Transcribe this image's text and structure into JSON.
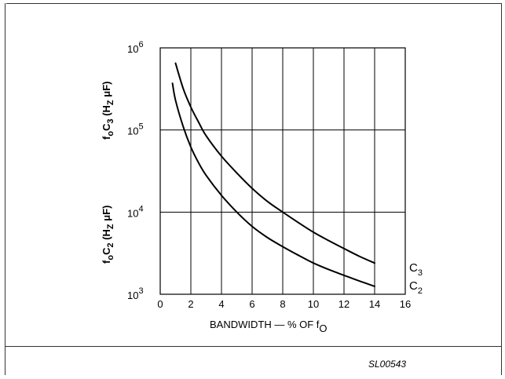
{
  "figure_id": "SL00543",
  "chart_data": {
    "type": "line",
    "scale": {
      "y": "log"
    },
    "xlabel": {
      "main": "BANDWIDTH — % OF f",
      "sub": "O"
    },
    "ylabel_upper": {
      "base1": "f",
      "sub1": "o",
      "base2": "C",
      "sub2": "3",
      "unit_open": " (H",
      "unit_sub": "Z",
      "unit_rest": " μF)"
    },
    "ylabel_lower": {
      "base1": "f",
      "sub1": "o",
      "base2": "C",
      "sub2": "2",
      "unit_open": " (H",
      "unit_sub": "Z",
      "unit_rest": " μF)"
    },
    "xlim": [
      0,
      16
    ],
    "ylim": [
      1000,
      1000000
    ],
    "x_ticks": [
      0,
      2,
      4,
      6,
      8,
      10,
      12,
      14,
      16
    ],
    "x_tick_labels": [
      "0",
      "2",
      "4",
      "6",
      "8",
      "10",
      "12",
      "14",
      "16"
    ],
    "y_ticks": [
      {
        "value": 1000,
        "base": "10",
        "exp": "3"
      },
      {
        "value": 10000,
        "base": "10",
        "exp": "4"
      },
      {
        "value": 100000,
        "base": "10",
        "exp": "5"
      },
      {
        "value": 1000000,
        "base": "10",
        "exp": "6"
      }
    ],
    "grid": true,
    "series": [
      {
        "name": "C3",
        "label_base": "C",
        "label_sub": "3",
        "x": [
          1.0,
          1.5,
          2.0,
          2.5,
          3.0,
          4.0,
          5.0,
          6.0,
          7.0,
          8.0,
          9.0,
          10.0,
          11.0,
          12.0,
          13.0,
          14.0
        ],
        "y": [
          650000,
          320000,
          190000,
          125000,
          85000,
          48000,
          30000,
          19500,
          13500,
          10000,
          7500,
          5700,
          4500,
          3600,
          2900,
          2400
        ]
      },
      {
        "name": "C2",
        "label_base": "C",
        "label_sub": "2",
        "x": [
          0.8,
          1.0,
          1.5,
          2.0,
          2.5,
          3.0,
          4.0,
          5.0,
          6.0,
          7.0,
          8.0,
          9.0,
          10.0,
          11.0,
          12.0,
          13.0,
          14.0
        ],
        "y": [
          370000,
          230000,
          110000,
          62000,
          40000,
          28000,
          16000,
          10000,
          6700,
          4900,
          3800,
          3000,
          2400,
          2000,
          1700,
          1450,
          1250
        ]
      }
    ]
  }
}
